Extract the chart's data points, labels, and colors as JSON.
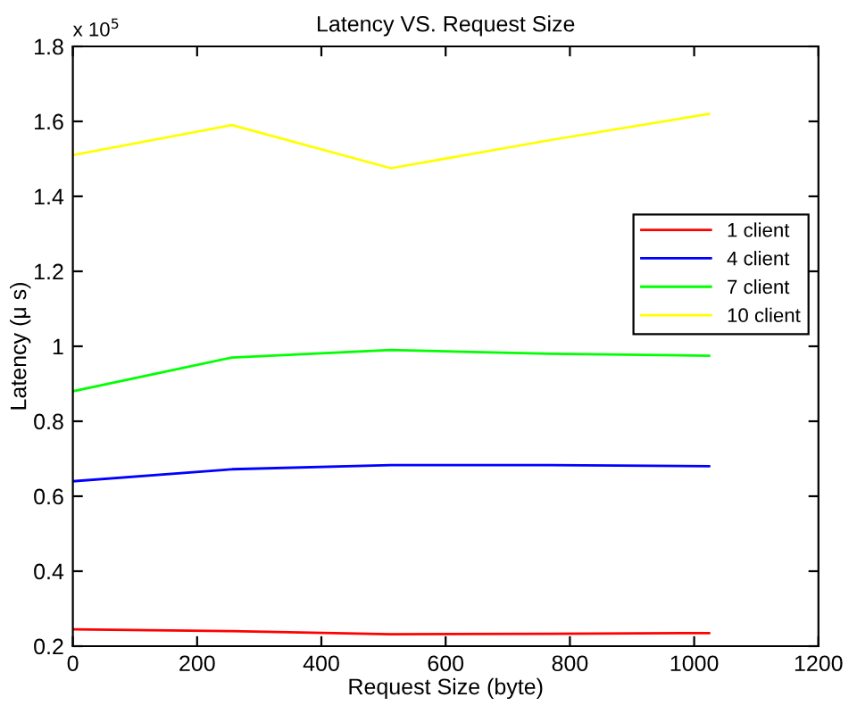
{
  "chart_data": {
    "type": "line",
    "title": "Latency VS. Request Size",
    "xlabel": "Request Size (byte)",
    "ylabel": "Latency (μ s)",
    "annotations": [
      "x 10$^{5}$"
    ],
    "x": [
      0,
      256,
      512,
      768,
      1024
    ],
    "series": [
      {
        "name": "1 client",
        "color": "#ff0000",
        "values": [
          0.245,
          0.24,
          0.232,
          0.233,
          0.235
        ]
      },
      {
        "name": "4 client",
        "color": "#0000ff",
        "values": [
          0.64,
          0.672,
          0.683,
          0.683,
          0.68
        ]
      },
      {
        "name": "7 client",
        "color": "#00ff00",
        "values": [
          0.88,
          0.97,
          0.99,
          0.98,
          0.975
        ]
      },
      {
        "name": "10 client",
        "color": "#ffff00",
        "values": [
          1.51,
          1.59,
          1.475,
          1.55,
          1.62
        ]
      }
    ],
    "xlim": [
      0,
      1200
    ],
    "xticks": [
      0,
      200,
      400,
      600,
      800,
      1000,
      1200
    ],
    "ylim": [
      0.2,
      1.8
    ],
    "yticks": [
      0.2,
      0.4,
      0.6,
      0.8,
      1,
      1.2,
      1.4,
      1.6,
      1.8
    ],
    "grid": false,
    "legend": "right"
  }
}
